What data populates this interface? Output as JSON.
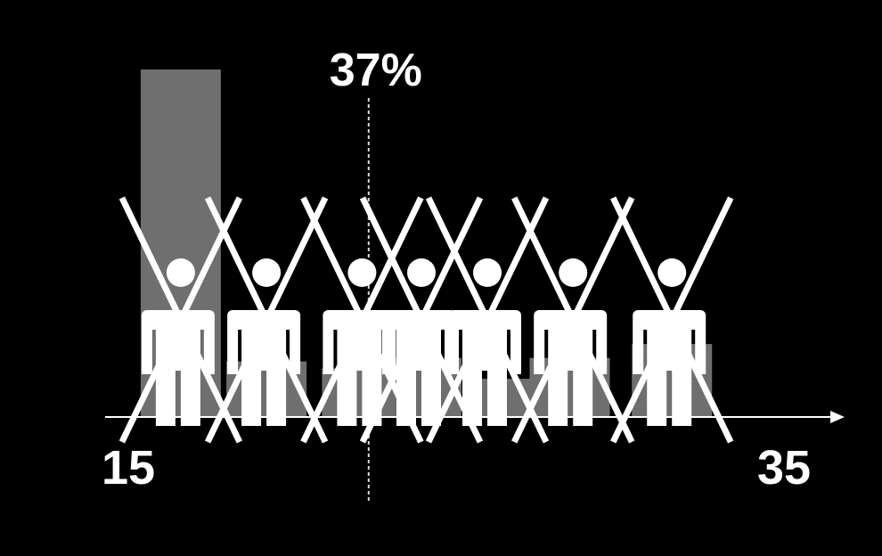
{
  "chart_data": {
    "type": "bar",
    "x_start_label": "15",
    "x_end_label": "35",
    "xlim": [
      15,
      35
    ],
    "ylim": [
      0,
      10
    ],
    "bars": [
      {
        "x": 16.7,
        "value": 10.0
      },
      {
        "x": 19.3,
        "value": 1.6
      },
      {
        "x": 22.2,
        "value": 1.4
      },
      {
        "x": 24.0,
        "value": 1.7
      },
      {
        "x": 26.5,
        "value": 1.1
      },
      {
        "x": 28.5,
        "value": 1.7
      },
      {
        "x": 31.6,
        "value": 2.1
      }
    ],
    "marker": {
      "x": 22.4,
      "label": "37%"
    },
    "people": [
      {
        "x": 16.7,
        "crossed": true
      },
      {
        "x": 19.3,
        "crossed": true
      },
      {
        "x": 22.2,
        "crossed": true
      },
      {
        "x": 24.0,
        "crossed": true
      },
      {
        "x": 26.0,
        "crossed": true
      },
      {
        "x": 28.6,
        "crossed": true
      },
      {
        "x": 31.6,
        "crossed": true
      }
    ],
    "colors": {
      "background": "#000000",
      "bar": "#6f6f6f",
      "foreground": "#ffffff"
    },
    "icon": "person-icon"
  }
}
